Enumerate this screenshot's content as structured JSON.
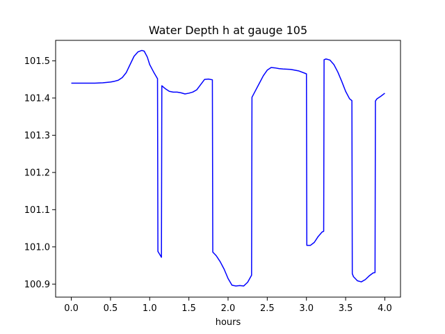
{
  "chart_data": {
    "type": "line",
    "title": "Water Depth h at gauge 105",
    "xlabel": "hours",
    "ylabel": "",
    "xlim": [
      -0.2,
      4.2
    ],
    "ylim": [
      100.865,
      101.555
    ],
    "x_ticks": [
      0.0,
      0.5,
      1.0,
      1.5,
      2.0,
      2.5,
      3.0,
      3.5,
      4.0
    ],
    "x_tick_labels": [
      "0.0",
      "0.5",
      "1.0",
      "1.5",
      "2.0",
      "2.5",
      "3.0",
      "3.5",
      "4.0"
    ],
    "y_ticks": [
      100.9,
      101.0,
      101.1,
      101.2,
      101.3,
      101.4,
      101.5
    ],
    "y_tick_labels": [
      "100.9",
      "101.0",
      "101.1",
      "101.2",
      "101.3",
      "101.4",
      "101.5"
    ],
    "grid": false,
    "legend": "none",
    "colors": {
      "line": "#0000ff",
      "axes": "#000000",
      "background": "#ffffff"
    },
    "series": [
      {
        "x": [
          0.0,
          0.1,
          0.2,
          0.3,
          0.4,
          0.5,
          0.55,
          0.6,
          0.65,
          0.7,
          0.75,
          0.8,
          0.85,
          0.9,
          0.93,
          0.97,
          1.0,
          1.05,
          1.1,
          1.105,
          1.15,
          1.155,
          1.2,
          1.25,
          1.3,
          1.35,
          1.4,
          1.45,
          1.5,
          1.55,
          1.6,
          1.65,
          1.7,
          1.75,
          1.8,
          1.805,
          1.85,
          1.9,
          1.95,
          2.0,
          2.05,
          2.1,
          2.15,
          2.2,
          2.25,
          2.3,
          2.305,
          2.35,
          2.4,
          2.45,
          2.5,
          2.55,
          2.6,
          2.65,
          2.7,
          2.8,
          2.9,
          3.0,
          3.005,
          3.05,
          3.1,
          3.15,
          3.2,
          3.22,
          3.225,
          3.25,
          3.3,
          3.35,
          3.4,
          3.45,
          3.5,
          3.55,
          3.58,
          3.585,
          3.6,
          3.65,
          3.7,
          3.75,
          3.8,
          3.85,
          3.875,
          3.88,
          3.9,
          3.95,
          4.0
        ],
        "y": [
          101.44,
          101.44,
          101.44,
          101.44,
          101.441,
          101.443,
          101.445,
          101.448,
          101.455,
          101.468,
          101.49,
          101.512,
          101.524,
          101.528,
          101.526,
          101.51,
          101.49,
          101.47,
          101.452,
          100.988,
          100.972,
          101.433,
          101.425,
          101.418,
          101.416,
          101.416,
          101.414,
          101.411,
          101.413,
          101.416,
          101.422,
          101.436,
          101.45,
          101.451,
          101.449,
          100.986,
          100.976,
          100.96,
          100.94,
          100.915,
          100.897,
          100.895,
          100.896,
          100.895,
          100.905,
          100.924,
          101.402,
          101.42,
          101.44,
          101.46,
          101.475,
          101.482,
          101.481,
          101.479,
          101.478,
          101.477,
          101.473,
          101.465,
          101.004,
          101.004,
          101.012,
          101.028,
          101.04,
          101.042,
          101.503,
          101.505,
          101.502,
          101.49,
          101.47,
          101.445,
          101.418,
          101.398,
          101.393,
          100.928,
          100.92,
          100.909,
          100.906,
          100.912,
          100.922,
          100.93,
          100.931,
          101.392,
          101.398,
          101.405,
          101.413
        ]
      }
    ]
  }
}
